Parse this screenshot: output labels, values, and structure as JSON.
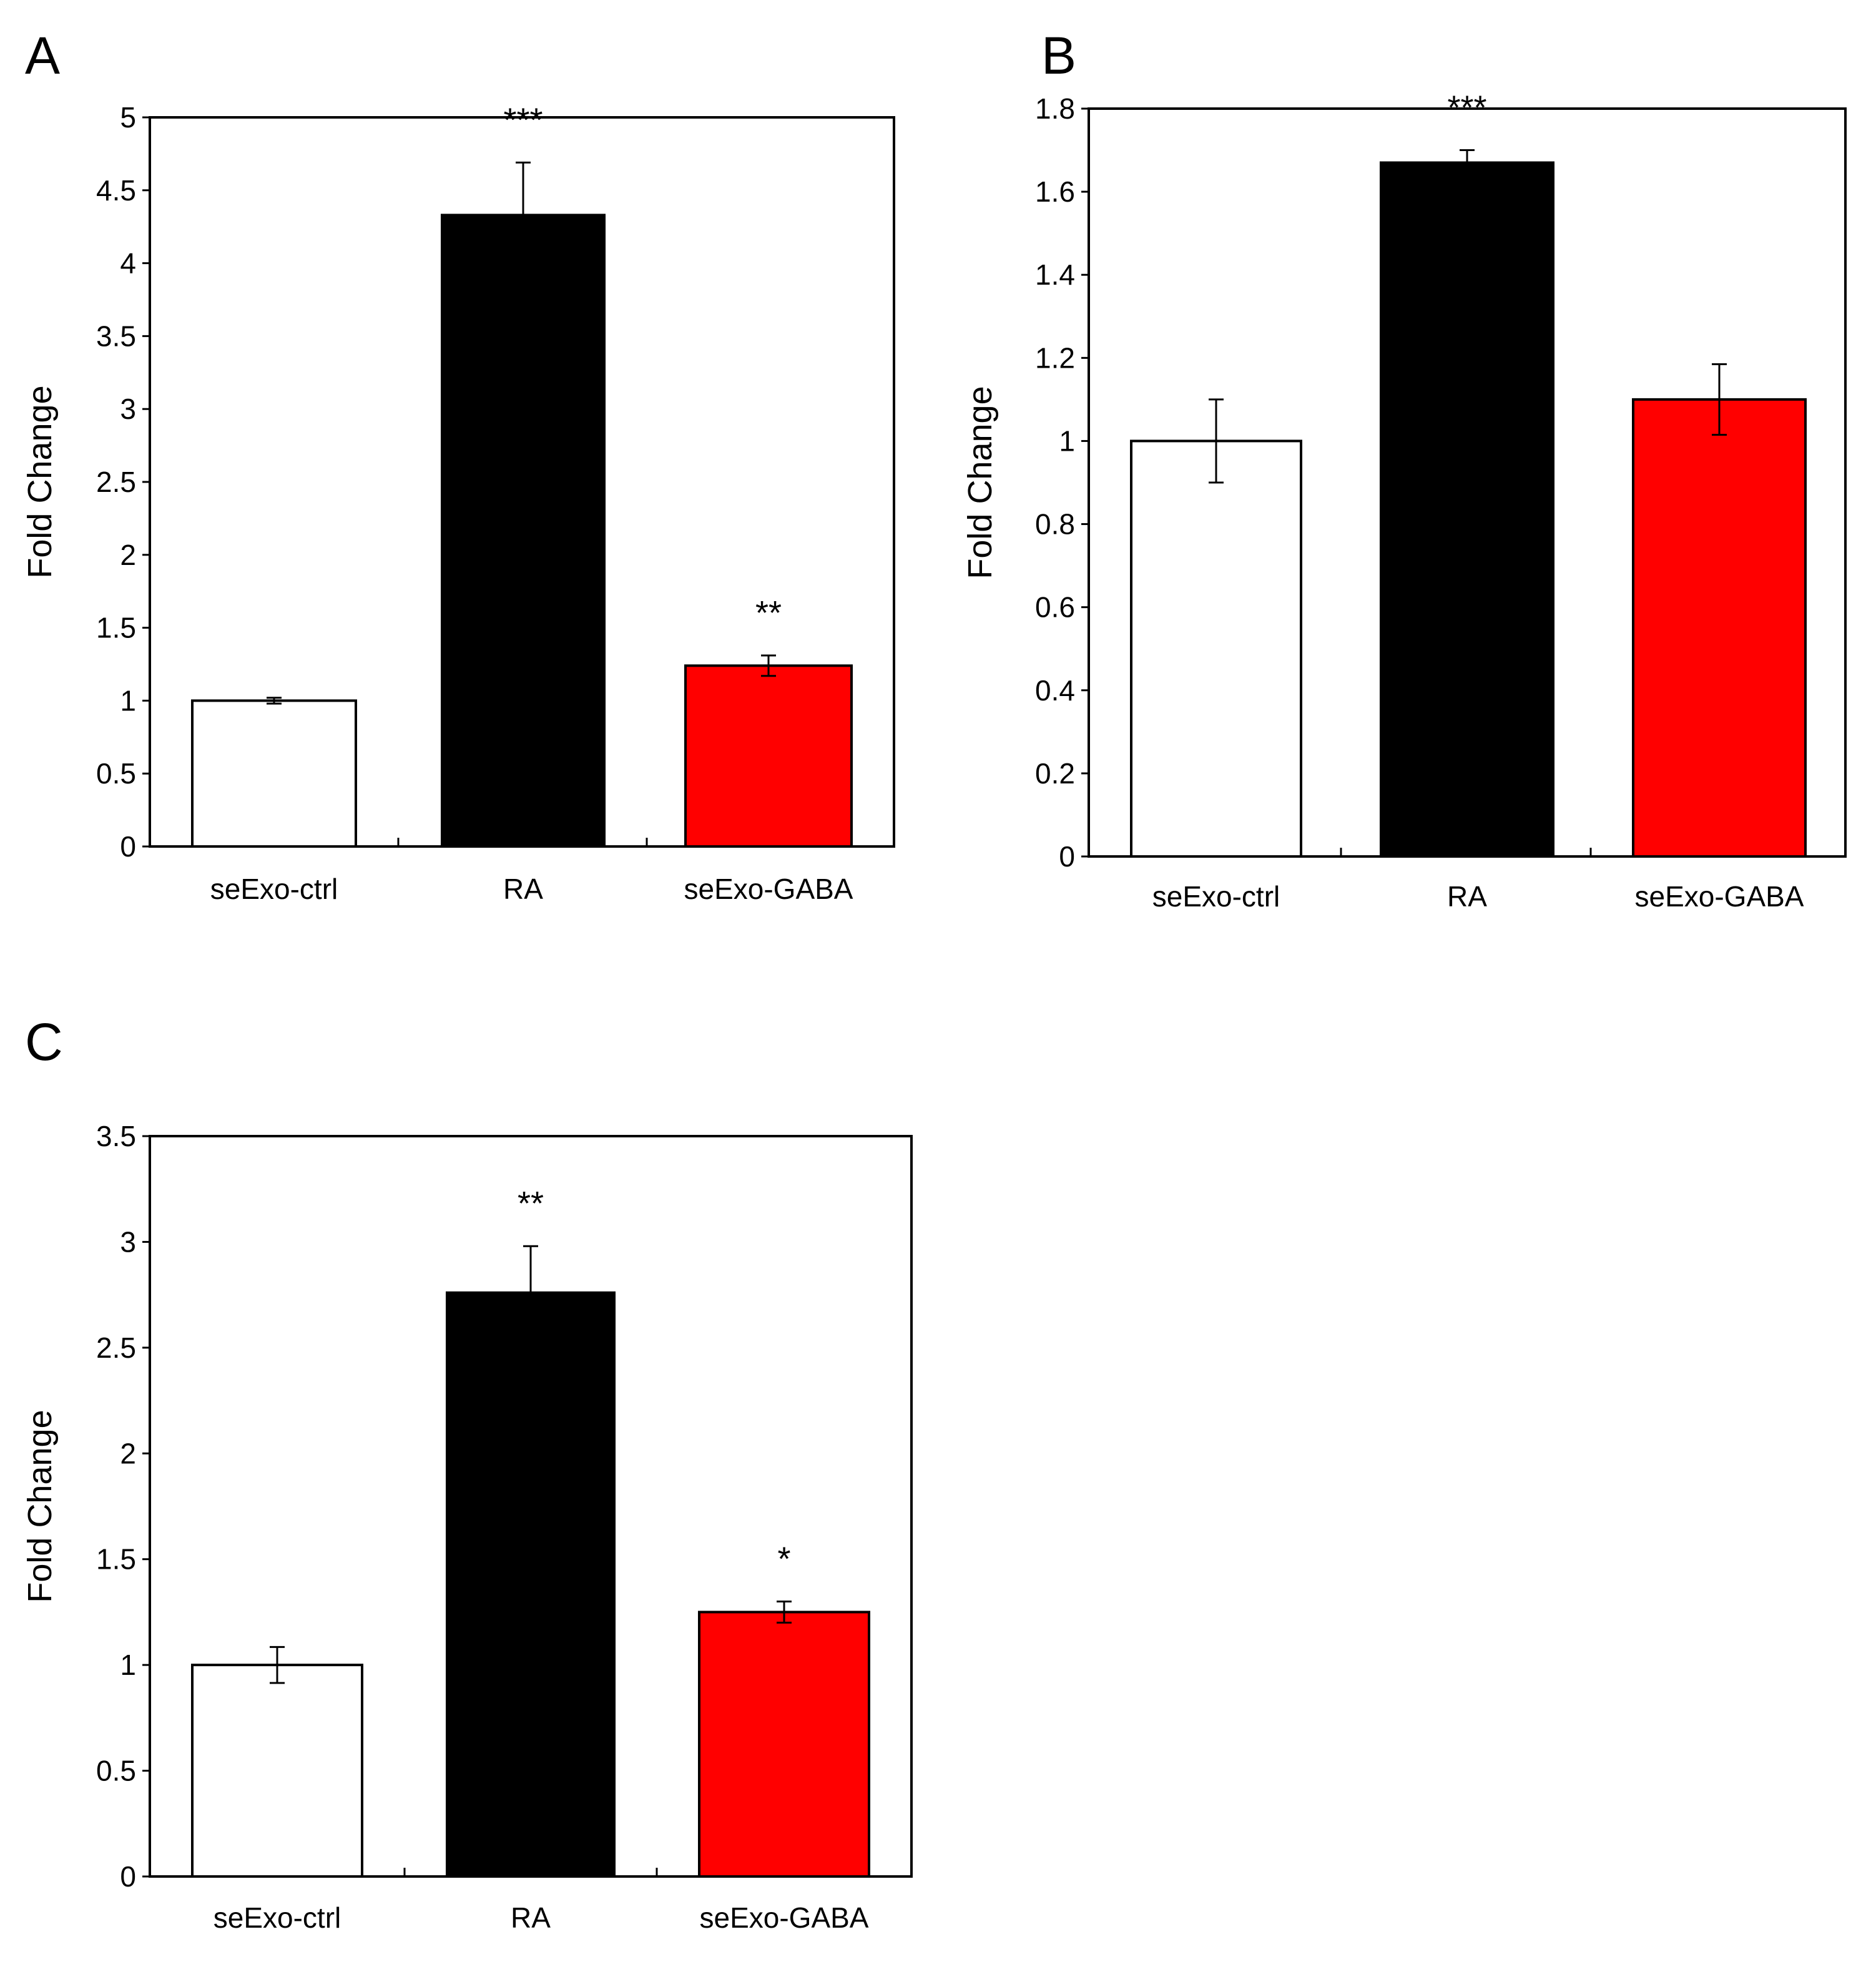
{
  "chart_data": [
    {
      "panel_label": "A",
      "type": "bar",
      "title": "",
      "xlabel": "",
      "ylabel": "Fold Change",
      "ylim": [
        0,
        5
      ],
      "yticks": [
        "0",
        "0.5",
        "1",
        "1.5",
        "2",
        "2.5",
        "3",
        "3.5",
        "4",
        "4.5",
        "5"
      ],
      "categories": [
        "seExo-ctrl",
        "RA",
        "seExo-GABA"
      ],
      "values": [
        1.0,
        4.33,
        1.24
      ],
      "errors": [
        0.02,
        0.36,
        0.07
      ],
      "significance": [
        "",
        "***",
        "**"
      ],
      "colors": [
        "#ffffff",
        "#000000",
        "#ff0000"
      ],
      "grid": false
    },
    {
      "panel_label": "B",
      "type": "bar",
      "title": "",
      "xlabel": "",
      "ylabel": "Fold Change",
      "ylim": [
        0,
        1.8
      ],
      "yticks": [
        "0",
        "0.2",
        "0.4",
        "0.6",
        "0.8",
        "1",
        "1.2",
        "1.4",
        "1.6",
        "1.8"
      ],
      "categories": [
        "seExo-ctrl",
        "RA",
        "seExo-GABA"
      ],
      "values": [
        1.0,
        1.67,
        1.1
      ],
      "errors": [
        0.1,
        0.03,
        0.085
      ],
      "significance": [
        "",
        "***",
        ""
      ],
      "colors": [
        "#ffffff",
        "#000000",
        "#ff0000"
      ],
      "grid": false
    },
    {
      "panel_label": "C",
      "type": "bar",
      "title": "",
      "xlabel": "",
      "ylabel": "Fold Change",
      "ylim": [
        0,
        3.5
      ],
      "yticks": [
        "0",
        "0.5",
        "1",
        "1.5",
        "2",
        "2.5",
        "3",
        "3.5"
      ],
      "categories": [
        "seExo-ctrl",
        "RA",
        "seExo-GABA"
      ],
      "values": [
        1.0,
        2.76,
        1.25
      ],
      "errors": [
        0.085,
        0.22,
        0.05
      ],
      "significance": [
        "",
        "**",
        "*"
      ],
      "colors": [
        "#ffffff",
        "#000000",
        "#ff0000"
      ],
      "grid": false
    }
  ]
}
